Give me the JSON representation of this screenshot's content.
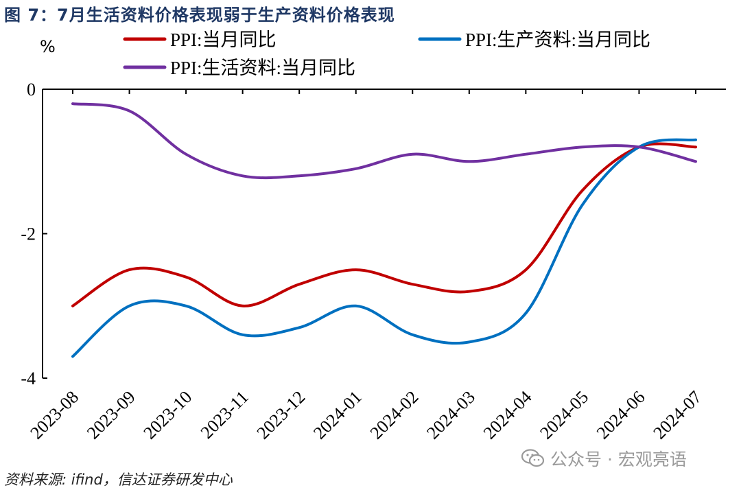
{
  "figure": {
    "title": "图 7：7月生活资料价格表现弱于生产资料价格表现",
    "source": "资料来源: ifind，信达证券研发中心",
    "watermark": "公众号 · 宏观亮语",
    "watermark_icon": "wechat-icon"
  },
  "chart_data": {
    "type": "line",
    "title": "",
    "unit_label": "%",
    "xlabel": "",
    "ylabel": "",
    "ylim": [
      -4,
      0
    ],
    "y_ticks": [
      0,
      -2,
      -4
    ],
    "y_tick_labels": [
      "0",
      "-2",
      "-4"
    ],
    "categories": [
      "2023-08",
      "2023-09",
      "2023-10",
      "2023-11",
      "2023-12",
      "2024-01",
      "2024-02",
      "2024-03",
      "2024-04",
      "2024-05",
      "2024-06",
      "2024-07"
    ],
    "grid": false,
    "legend_position": "top",
    "series": [
      {
        "name": "PPI:当月同比",
        "color": "#c00000",
        "values": [
          -3.0,
          -2.5,
          -2.6,
          -3.0,
          -2.7,
          -2.5,
          -2.7,
          -2.8,
          -2.5,
          -1.4,
          -0.8,
          -0.8
        ]
      },
      {
        "name": "PPI:生产资料:当月同比",
        "color": "#0070c0",
        "values": [
          -3.7,
          -3.0,
          -3.0,
          -3.4,
          -3.3,
          -3.0,
          -3.4,
          -3.5,
          -3.1,
          -1.6,
          -0.8,
          -0.7
        ]
      },
      {
        "name": "PPI:生活资料:当月同比",
        "color": "#7030a0",
        "values": [
          -0.2,
          -0.3,
          -0.9,
          -1.2,
          -1.2,
          -1.1,
          -0.9,
          -1.0,
          -0.9,
          -0.8,
          -0.8,
          -1.0
        ]
      }
    ]
  }
}
